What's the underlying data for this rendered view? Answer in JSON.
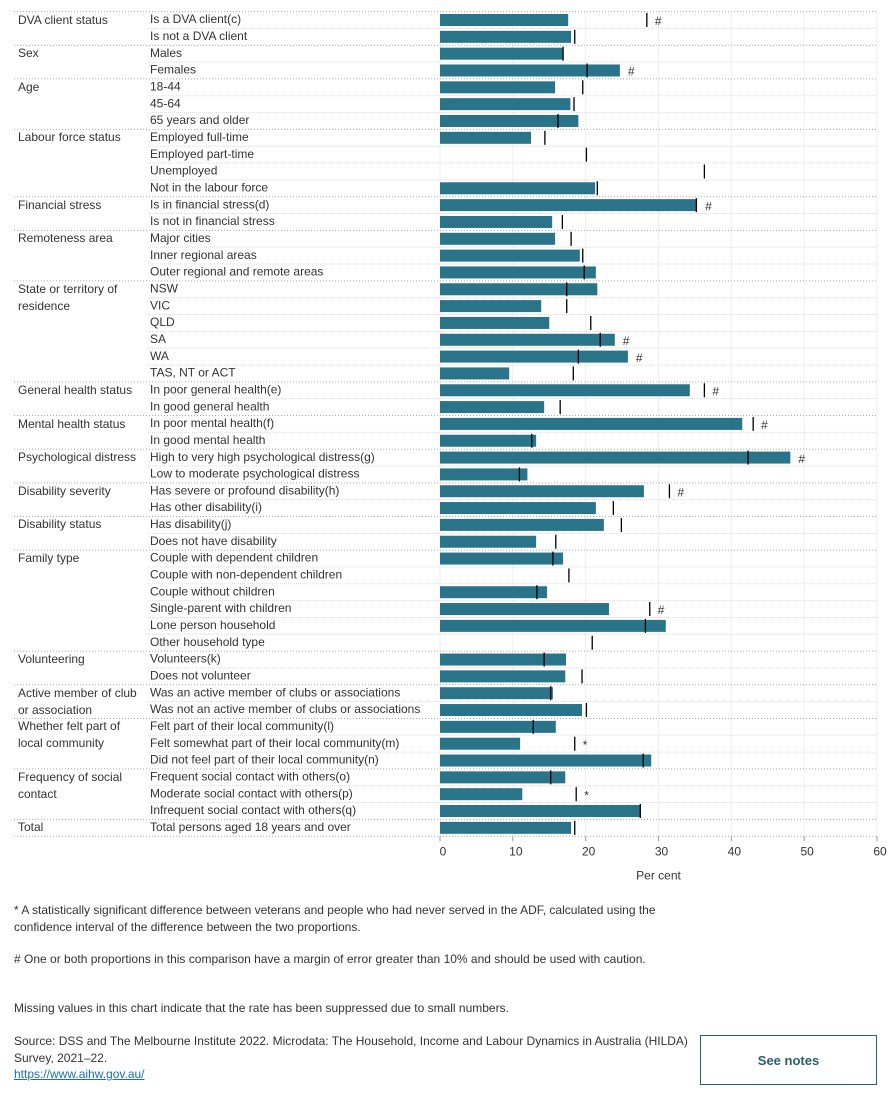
{
  "chart_data": {
    "type": "bar",
    "categories": [
      "Is a DVA client(c)",
      "Is not a DVA client",
      "Males",
      "Females",
      "18-44",
      "45-64",
      "65 years and older",
      "Employed full-time",
      "Employed part-time",
      "Unemployed",
      "Not in the labour force",
      "Is in financial stress(d)",
      "Is not in financial stress",
      "Major cities",
      "Inner regional areas",
      "Outer regional and remote areas",
      "NSW",
      "VIC",
      "QLD",
      "SA",
      "WA",
      "TAS, NT or ACT",
      "In poor general health(e)",
      "In good general health",
      "In poor mental health(f)",
      "In good mental health",
      "High to very high psychological distress(g)",
      "Low to moderate psychological distress",
      "Has severe or profound disability(h)",
      "Has other disability(i)",
      "Has disability(j)",
      "Does not have disability",
      "Couple with dependent children",
      "Couple with non-dependent children",
      "Couple without children",
      "Single-parent with children",
      "Lone person household",
      "Other household type",
      "Volunteers(k)",
      "Does not volunteer",
      "Was an active member of clubs or associations",
      "Was not an active member of clubs or associations",
      "Felt part of their local community(l)",
      "Felt somewhat part of their local community(m)",
      "Did not feel part of their local community(n)",
      "Frequent social contact with others(o)",
      "Moderate social contact with others(p)",
      "Infrequent social contact with others(q)",
      "Total persons aged 18 years and over"
    ],
    "groups": [
      "DVA client status",
      null,
      "Sex",
      null,
      "Age",
      null,
      null,
      "Labour force status",
      null,
      null,
      null,
      "Financial stress",
      null,
      "Remoteness area",
      null,
      null,
      "State or territory of residence",
      null,
      null,
      null,
      null,
      null,
      "General health status",
      null,
      "Mental health status",
      null,
      "Psychological distress",
      null,
      "Disability severity",
      null,
      "Disability status",
      null,
      "Family type",
      null,
      null,
      null,
      null,
      null,
      "Volunteering",
      null,
      "Active member of club or association",
      null,
      "Whether felt part of local community",
      null,
      null,
      "Frequency of social contact",
      null,
      null,
      "Total"
    ],
    "series": [
      {
        "marker": "bar",
        "color": "#2a7489",
        "values": [
          17.6,
          18.0,
          16.9,
          24.7,
          15.8,
          17.9,
          19.0,
          12.5,
          null,
          null,
          21.3,
          35.3,
          15.4,
          15.8,
          19.2,
          21.4,
          21.6,
          13.9,
          15.0,
          24.0,
          25.8,
          9.5,
          34.3,
          14.3,
          41.5,
          13.2,
          48.1,
          12.0,
          28.0,
          21.4,
          22.5,
          13.2,
          16.9,
          null,
          14.7,
          23.2,
          31.0,
          null,
          17.3,
          17.2,
          15.5,
          19.5,
          15.9,
          11.0,
          29.0,
          17.2,
          11.3,
          27.6,
          18.0
        ]
      },
      {
        "marker": "tick",
        "color": "#000000",
        "values": [
          28.4,
          18.5,
          16.9,
          20.2,
          19.6,
          18.4,
          16.2,
          14.4,
          20.1,
          36.3,
          21.6,
          35.2,
          16.8,
          18.0,
          19.6,
          19.8,
          17.4,
          17.4,
          20.7,
          22.0,
          19.0,
          18.3,
          36.3,
          16.5,
          43.0,
          12.6,
          42.3,
          10.9,
          31.5,
          23.8,
          24.9,
          15.9,
          15.5,
          17.7,
          13.3,
          28.8,
          28.2,
          20.9,
          14.3,
          19.5,
          15.2,
          20.1,
          12.8,
          18.5,
          27.9,
          15.2,
          18.7,
          27.5,
          18.5
        ]
      }
    ],
    "flags": [
      "#",
      null,
      null,
      "#",
      null,
      null,
      null,
      null,
      null,
      null,
      null,
      "#",
      null,
      null,
      null,
      null,
      null,
      null,
      null,
      "#",
      "#",
      null,
      "#",
      null,
      "#",
      null,
      "#",
      null,
      "#",
      null,
      null,
      null,
      null,
      null,
      null,
      "#",
      null,
      null,
      null,
      null,
      null,
      null,
      null,
      "*",
      null,
      null,
      "*",
      null,
      null
    ],
    "xlim": [
      0,
      60
    ],
    "xticks": [
      0,
      10,
      20,
      30,
      40,
      50,
      60
    ],
    "xlabel": "Per cent",
    "grid": true
  },
  "notes": [
    "* A statistically significant difference between veterans and people who had never served in the ADF, calculated using the confidence interval of the difference between the two proportions.",
    "# One or both proportions in this comparison have a margin of error greater than 10% and should be used with caution.",
    "Missing values in this chart indicate that the rate has been suppressed due to small numbers."
  ],
  "source": "Source: DSS and The Melbourne Institute 2022. Microdata: The Household, Income and Labour Dynamics in Australia (HILDA) Survey, 2021–22.",
  "link": "https://www.aihw.gov.au/",
  "button": "See notes"
}
